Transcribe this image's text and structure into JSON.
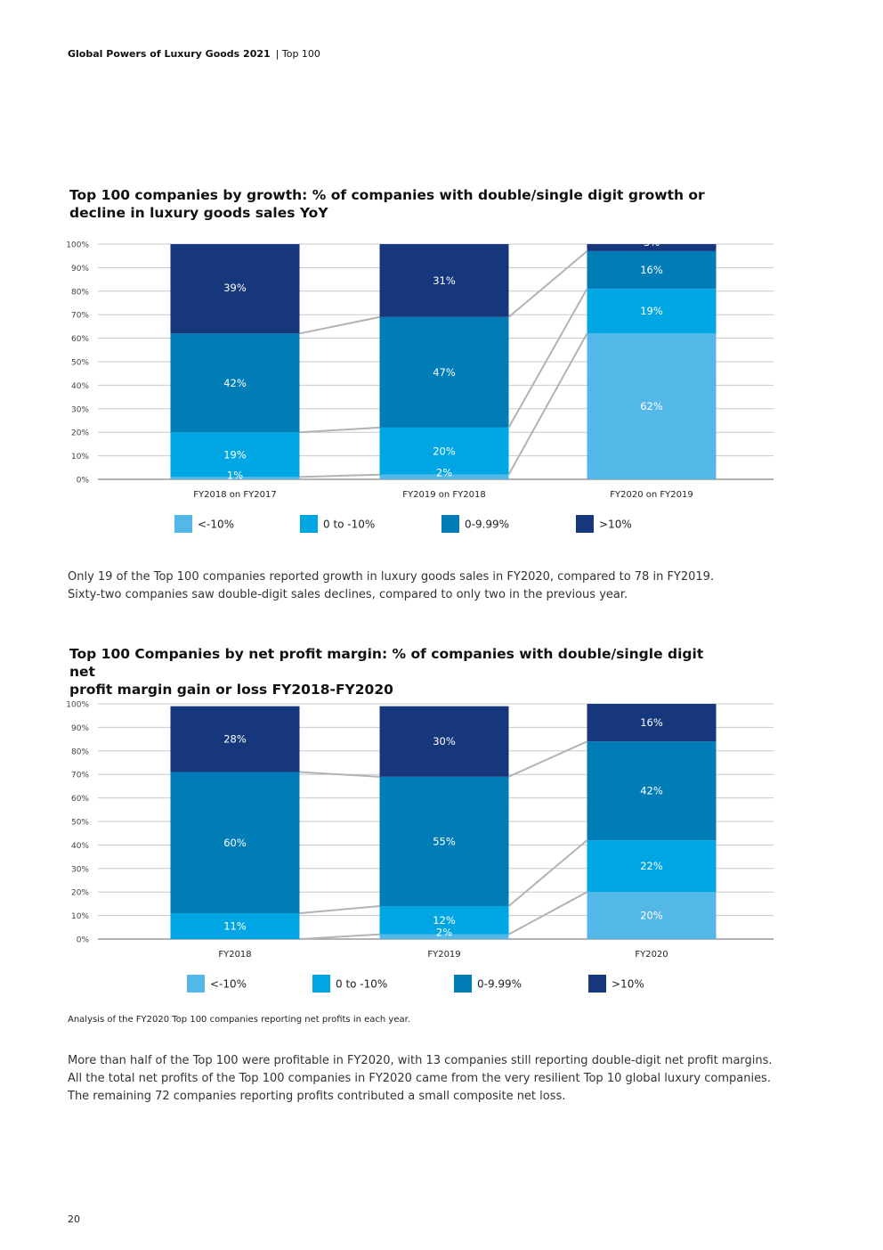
{
  "header": {
    "report_title": "Global Powers of Luxury Goods 2021",
    "section": "| Top 100"
  },
  "page_number": "20",
  "colors": {
    "lt10": "#53b8e8",
    "zero_to_neg10": "#00a6e4",
    "zero_to_10": "#007cb6",
    "gt10": "#17377c",
    "connector": "#b3b3b3",
    "grid": "#c8c8c8"
  },
  "paragraph1": {
    "line1": "Only 19 of the Top 100 companies reported growth in luxury goods sales in FY2020, compared to 78 in FY2019.",
    "line2": "Sixty-two companies saw double-digit sales declines, compared to only two in the previous year."
  },
  "note": "Analysis of the FY2020 Top 100 companies reporting net profits in each year.",
  "paragraph2": {
    "line1": "More than half of the Top 100 were profitable in FY2020, with 13 companies still reporting double-digit net profit margins.",
    "line2": "All the total net profits of the Top 100 companies in FY2020 came from the very resilient Top 10 global luxury companies.",
    "line3": "The remaining 72 companies reporting profits contributed a small composite net loss."
  },
  "chart_data": [
    {
      "type": "bar",
      "stacked": true,
      "title_line1": "Top 100 companies by growth: % of companies with double/single digit growth or",
      "title_line2": "decline in luxury goods sales YoY",
      "categories": [
        "FY2018 on FY2017",
        "FY2019 on FY2018",
        "FY2020 on FY2019"
      ],
      "yticks": [
        "0%",
        "10%",
        "20%",
        "30%",
        "40%",
        "50%",
        "60%",
        "70%",
        "80%",
        "90%",
        "100%"
      ],
      "ylim": [
        0,
        100
      ],
      "grid": true,
      "legend_position": "bottom",
      "series": [
        {
          "name": "<-10%",
          "color": "#53b8e8",
          "values": [
            1,
            2,
            62
          ],
          "labels": [
            "1%",
            "2%",
            "62%"
          ]
        },
        {
          "name": "0 to -10%",
          "color": "#00a6e4",
          "values": [
            19,
            20,
            19
          ],
          "labels": [
            "19%",
            "20%",
            "19%"
          ]
        },
        {
          "name": "0-9.99%",
          "color": "#007cb6",
          "values": [
            42,
            47,
            16
          ],
          "labels": [
            "42%",
            "47%",
            "16%"
          ]
        },
        {
          "name": ">10%",
          "color": "#17377c",
          "values": [
            39,
            31,
            3
          ],
          "labels": [
            "39%",
            "31%",
            "3%"
          ]
        }
      ]
    },
    {
      "type": "bar",
      "stacked": true,
      "title_line1": "Top 100 Companies by net profit margin:  % of companies with double/single digit net",
      "title_line2": "profit margin gain or loss FY2018-FY2020",
      "categories": [
        "FY2018",
        "FY2019",
        "FY2020"
      ],
      "yticks": [
        "0%",
        "10%",
        "20%",
        "30%",
        "40%",
        "50%",
        "60%",
        "70%",
        "80%",
        "90%",
        "100%"
      ],
      "ylim": [
        0,
        100
      ],
      "grid": true,
      "legend_position": "bottom",
      "series": [
        {
          "name": "<-10%",
          "color": "#53b8e8",
          "values": [
            0,
            2,
            20
          ],
          "labels": [
            "",
            "2%",
            "20%"
          ]
        },
        {
          "name": "0 to -10%",
          "color": "#00a6e4",
          "values": [
            11,
            12,
            22
          ],
          "labels": [
            "11%",
            "12%",
            "22%"
          ]
        },
        {
          "name": "0-9.99%",
          "color": "#007cb6",
          "values": [
            60,
            55,
            42
          ],
          "labels": [
            "60%",
            "55%",
            "42%"
          ]
        },
        {
          "name": ">10%",
          "color": "#17377c",
          "values": [
            28,
            30,
            16
          ],
          "labels": [
            "28%",
            "30%",
            "16%"
          ]
        }
      ]
    }
  ]
}
